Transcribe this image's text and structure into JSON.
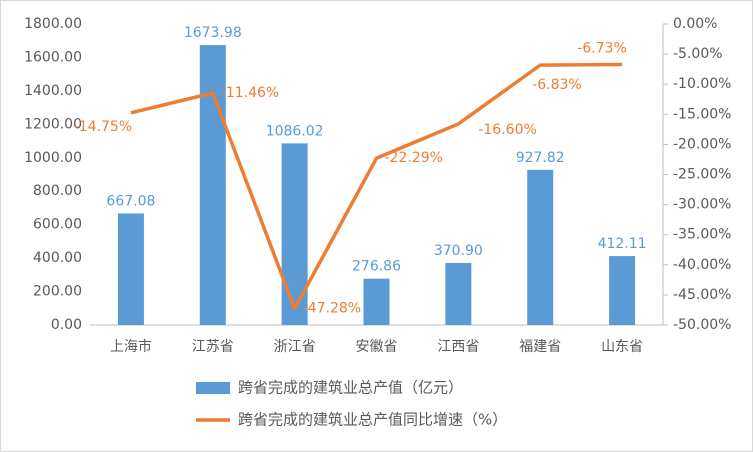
{
  "chart_data": {
    "type": "bar-line",
    "categories": [
      "上海市",
      "江苏省",
      "浙江省",
      "安徽省",
      "江西省",
      "福建省",
      "山东省"
    ],
    "series": [
      {
        "name": "跨省完成的建筑业总产值（亿元）",
        "type": "bar",
        "color": "#5b9bd5",
        "values": [
          667.08,
          1673.98,
          1086.02,
          276.86,
          370.9,
          927.82,
          412.11
        ],
        "value_labels": [
          "667.08",
          "1673.98",
          "1086.02",
          "276.86",
          "370.90",
          "927.82",
          "412.11"
        ]
      },
      {
        "name": "跨省完成的建筑业总产值同比增速（%）",
        "type": "line",
        "axis": "y2",
        "color": "#ed7d31",
        "values": [
          -14.75,
          -11.46,
          -47.28,
          -22.29,
          -16.6,
          -6.83,
          -6.73
        ],
        "value_labels": [
          "-14.75%",
          "-11.46%",
          "-47.28%",
          "-22.29%",
          "-16.60%",
          "-6.83%",
          "-6.73%"
        ]
      }
    ],
    "ylim": [
      0,
      1800
    ],
    "yticks": [
      {
        "value": 0,
        "label": "0.00"
      },
      {
        "value": 200,
        "label": "200.00"
      },
      {
        "value": 400,
        "label": "400.00"
      },
      {
        "value": 600,
        "label": "600.00"
      },
      {
        "value": 800,
        "label": "800.00"
      },
      {
        "value": 1000,
        "label": "1000.00"
      },
      {
        "value": 1200,
        "label": "1200.00"
      },
      {
        "value": 1400,
        "label": "1400.00"
      },
      {
        "value": 1600,
        "label": "1600.00"
      },
      {
        "value": 1800,
        "label": "1800.00"
      }
    ],
    "y2lim": [
      -50,
      0
    ],
    "y2ticks": [
      {
        "value": 0,
        "label": "0.00%"
      },
      {
        "value": -5,
        "label": "-5.00%"
      },
      {
        "value": -10,
        "label": "-10.00%"
      },
      {
        "value": -15,
        "label": "-15.00%"
      },
      {
        "value": -20,
        "label": "-20.00%"
      },
      {
        "value": -25,
        "label": "-25.00%"
      },
      {
        "value": -30,
        "label": "-30.00%"
      },
      {
        "value": -35,
        "label": "-35.00%"
      },
      {
        "value": -40,
        "label": "-40.00%"
      },
      {
        "value": -45,
        "label": "-45.00%"
      },
      {
        "value": -50,
        "label": "-50.00%"
      }
    ],
    "legend": "bottom"
  }
}
